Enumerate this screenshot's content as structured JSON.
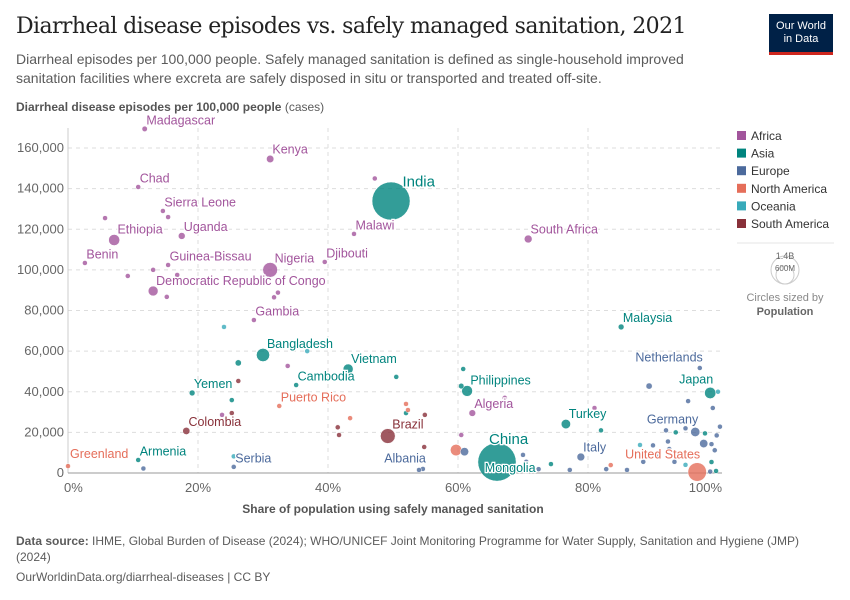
{
  "header": {
    "title": "Diarrheal disease episodes vs. safely managed sanitation, 2021",
    "subtitle": "Diarrheal episodes per 100,000 people. Safely managed sanitation is defined as single-household improved sanitation facilities where excreta are safely disposed in situ or transported and treated off-site.",
    "logo_line1": "Our World",
    "logo_line2": "in Data"
  },
  "footer": {
    "source_label": "Data source:",
    "source_text": "IHME, Global Burden of Disease (2024); WHO/UNICEF Joint Monitoring Programme for Water Supply, Sanitation and Hygiene (JMP) (2024)",
    "url": "OurWorldinData.org/diarrheal-diseases | CC BY"
  },
  "chart_data": {
    "type": "scatter",
    "ylabel": "Diarrheal disease episodes per 100,000 people",
    "ylabel_unit": "(cases)",
    "xlabel": "Share of population using safely managed sanitation",
    "xlim": [
      0,
      100
    ],
    "ylim": [
      0,
      160000
    ],
    "x_ticks": [
      "0%",
      "20%",
      "40%",
      "60%",
      "80%",
      "100%"
    ],
    "x_tick_values": [
      0,
      20,
      40,
      60,
      80,
      100
    ],
    "y_ticks": [
      "0",
      "20,000",
      "40,000",
      "60,000",
      "80,000",
      "100,000",
      "120,000",
      "140,000",
      "160,000"
    ],
    "y_tick_values": [
      0,
      20000,
      40000,
      60000,
      80000,
      100000,
      120000,
      140000,
      160000
    ],
    "grid": true,
    "legend_position": "right",
    "legend": [
      {
        "name": "Africa",
        "color": "#a2559c"
      },
      {
        "name": "Asia",
        "color": "#00847e"
      },
      {
        "name": "Europe",
        "color": "#4c6a9c"
      },
      {
        "name": "North America",
        "color": "#e56e5a"
      },
      {
        "name": "Oceania",
        "color": "#38aaba"
      },
      {
        "name": "South America",
        "color": "#883039"
      }
    ],
    "size_legend": {
      "large": "1.4B",
      "small": "600M",
      "caption": "Circles sized by",
      "variable": "Population"
    },
    "points": [
      {
        "label": "Madagascar",
        "region": "Africa",
        "x": 11.8,
        "y": 169400,
        "pop": 29
      },
      {
        "label": "Kenya",
        "region": "Africa",
        "x": 31.1,
        "y": 154600,
        "pop": 54
      },
      {
        "label": "Chad",
        "region": "Africa",
        "x": 10.8,
        "y": 140800,
        "pop": 18
      },
      {
        "label": "Sierra Leone",
        "region": "Africa",
        "x": 14.6,
        "y": 129000,
        "pop": 8
      },
      {
        "label": "Ethiopia",
        "region": "Africa",
        "x": 7.1,
        "y": 114700,
        "pop": 120
      },
      {
        "label": "Uganda",
        "region": "Africa",
        "x": 17.5,
        "y": 116700,
        "pop": 46
      },
      {
        "label": "Benin",
        "region": "Africa",
        "x": 2.6,
        "y": 103400,
        "pop": 13
      },
      {
        "label": "Guinea-Bissau",
        "region": "Africa",
        "x": 15.4,
        "y": 102400,
        "pop": 2
      },
      {
        "label": "Nigeria",
        "region": "Africa",
        "x": 31.1,
        "y": 100000,
        "pop": 213
      },
      {
        "label": "Democratic Republic of Congo",
        "region": "Africa",
        "x": 13.1,
        "y": 89600,
        "pop": 95
      },
      {
        "label": "Djibouti",
        "region": "Africa",
        "x": 39.5,
        "y": 103900,
        "pop": 1
      },
      {
        "label": "Malawi",
        "region": "Africa",
        "x": 44.0,
        "y": 117700,
        "pop": 20
      },
      {
        "label": "South Africa",
        "region": "Africa",
        "x": 70.8,
        "y": 115200,
        "pop": 60
      },
      {
        "label": "Gambia",
        "region": "Africa",
        "x": 28.6,
        "y": 75300,
        "pop": 2.6
      },
      {
        "label": "Algeria",
        "region": "Africa",
        "x": 62.2,
        "y": 29500,
        "pop": 44
      },
      {
        "label": "India",
        "region": "Asia",
        "x": 49.7,
        "y": 133900,
        "pop": 1410
      },
      {
        "label": "Bangladesh",
        "region": "Asia",
        "x": 30.0,
        "y": 58100,
        "pop": 170
      },
      {
        "label": "Vietnam",
        "region": "Asia",
        "x": 43.1,
        "y": 51200,
        "pop": 98
      },
      {
        "label": "Cambodia",
        "region": "Asia",
        "x": 35.1,
        "y": 43300,
        "pop": 16
      },
      {
        "label": "Yemen",
        "region": "Asia",
        "x": 19.1,
        "y": 39400,
        "pop": 33
      },
      {
        "label": "Philippines",
        "region": "Asia",
        "x": 61.4,
        "y": 40400,
        "pop": 114
      },
      {
        "label": "Malaysia",
        "region": "Asia",
        "x": 85.1,
        "y": 71900,
        "pop": 33
      },
      {
        "label": "Japan",
        "region": "Asia",
        "x": 98.8,
        "y": 39400,
        "pop": 125
      },
      {
        "label": "Turkey",
        "region": "Asia",
        "x": 76.6,
        "y": 24100,
        "pop": 85
      },
      {
        "label": "China",
        "region": "Asia",
        "x": 66.0,
        "y": 5400,
        "pop": 1425
      },
      {
        "label": "Mongolia",
        "region": "Asia",
        "x": 65.2,
        "y": 3000,
        "pop": 3.3
      },
      {
        "label": "Armenia",
        "region": "Asia",
        "x": 10.8,
        "y": 6400,
        "pop": 2.8
      },
      {
        "label": "Netherlands",
        "region": "Europe",
        "x": 97.2,
        "y": 51700,
        "pop": 17.5
      },
      {
        "label": "Germany",
        "region": "Europe",
        "x": 96.5,
        "y": 20200,
        "pop": 83
      },
      {
        "label": "Italy",
        "region": "Europe",
        "x": 78.9,
        "y": 7900,
        "pop": 59
      },
      {
        "label": "Albania",
        "region": "Europe",
        "x": 54.6,
        "y": 2000,
        "pop": 2.8
      },
      {
        "label": "Serbia",
        "region": "Europe",
        "x": 25.5,
        "y": 3000,
        "pop": 7
      },
      {
        "label": "United States",
        "region": "North America",
        "x": 96.8,
        "y": 500,
        "pop": 335
      },
      {
        "label": "Puerto Rico",
        "region": "North America",
        "x": 32.5,
        "y": 33000,
        "pop": 3
      },
      {
        "label": "Greenland",
        "region": "North America",
        "x": 0.0,
        "y": 3400,
        "pop": 0.06
      },
      {
        "label": "Colombia",
        "region": "South America",
        "x": 18.2,
        "y": 20700,
        "pop": 51
      },
      {
        "label": "Brazil",
        "region": "South America",
        "x": 49.2,
        "y": 18200,
        "pop": 214
      },
      {
        "region": "North America",
        "x": 59.7,
        "y": 11300,
        "pop": 127
      },
      {
        "region": "Europe",
        "x": 61.0,
        "y": 10500,
        "pop": 68
      },
      {
        "region": "Africa",
        "x": 47.2,
        "y": 145000,
        "pop": 2
      },
      {
        "region": "Africa",
        "x": 5.7,
        "y": 125500,
        "pop": 2
      },
      {
        "region": "Africa",
        "x": 15.4,
        "y": 126000,
        "pop": 6
      },
      {
        "region": "Africa",
        "x": 9.2,
        "y": 97000,
        "pop": 4
      },
      {
        "region": "Africa",
        "x": 13.1,
        "y": 100000,
        "pop": 2
      },
      {
        "region": "Africa",
        "x": 16.8,
        "y": 97500,
        "pop": 3
      },
      {
        "region": "Africa",
        "x": 15.2,
        "y": 86700,
        "pop": 9
      },
      {
        "region": "Africa",
        "x": 31.7,
        "y": 86500,
        "pop": 3
      },
      {
        "region": "Africa",
        "x": 32.3,
        "y": 88800,
        "pop": 3
      },
      {
        "region": "Africa",
        "x": 33.8,
        "y": 52700,
        "pop": 3
      },
      {
        "region": "Africa",
        "x": 23.7,
        "y": 28600,
        "pop": 2
      },
      {
        "region": "Africa",
        "x": 60.5,
        "y": 18700,
        "pop": 5
      },
      {
        "region": "Africa",
        "x": 67.2,
        "y": 37000,
        "pop": 6
      },
      {
        "region": "Africa",
        "x": 81.0,
        "y": 32000,
        "pop": 2
      },
      {
        "region": "Asia",
        "x": 26.2,
        "y": 54200,
        "pop": 38
      },
      {
        "region": "Asia",
        "x": 25.2,
        "y": 35900,
        "pop": 2
      },
      {
        "region": "Asia",
        "x": 50.5,
        "y": 47300,
        "pop": 7
      },
      {
        "region": "Asia",
        "x": 60.8,
        "y": 51200,
        "pop": 2
      },
      {
        "region": "Asia",
        "x": 60.5,
        "y": 42800,
        "pop": 30
      },
      {
        "region": "Asia",
        "x": 52.0,
        "y": 29500,
        "pop": 5
      },
      {
        "region": "Asia",
        "x": 74.3,
        "y": 4400,
        "pop": 10
      },
      {
        "region": "Asia",
        "x": 82.0,
        "y": 21000,
        "pop": 3
      },
      {
        "region": "Asia",
        "x": 93.5,
        "y": 20000,
        "pop": 3
      },
      {
        "region": "Asia",
        "x": 99.0,
        "y": 5400,
        "pop": 25
      },
      {
        "region": "Asia",
        "x": 99.7,
        "y": 1000,
        "pop": 3
      },
      {
        "region": "Asia",
        "x": 98.0,
        "y": 19500,
        "pop": 3
      },
      {
        "region": "Europe",
        "x": 89.4,
        "y": 42800,
        "pop": 38
      },
      {
        "region": "Europe",
        "x": 98.0,
        "y": 45800,
        "pop": 3
      },
      {
        "region": "Europe",
        "x": 95.4,
        "y": 35400,
        "pop": 3
      },
      {
        "region": "Europe",
        "x": 99.2,
        "y": 32000,
        "pop": 5
      },
      {
        "region": "Europe",
        "x": 100.3,
        "y": 22800,
        "pop": 6
      },
      {
        "region": "Europe",
        "x": 99.8,
        "y": 18500,
        "pop": 8
      },
      {
        "region": "Europe",
        "x": 99.0,
        "y": 14200,
        "pop": 5
      },
      {
        "region": "Europe",
        "x": 99.5,
        "y": 11200,
        "pop": 2
      },
      {
        "region": "Europe",
        "x": 97.8,
        "y": 14500,
        "pop": 67
      },
      {
        "region": "Europe",
        "x": 90.0,
        "y": 13600,
        "pop": 3
      },
      {
        "region": "Europe",
        "x": 92.3,
        "y": 15500,
        "pop": 2
      },
      {
        "region": "Europe",
        "x": 92.5,
        "y": 11800,
        "pop": 3
      },
      {
        "region": "Europe",
        "x": 95.0,
        "y": 22000,
        "pop": 2
      },
      {
        "region": "Europe",
        "x": 92.0,
        "y": 21000,
        "pop": 3
      },
      {
        "region": "Europe",
        "x": 96.0,
        "y": 8000,
        "pop": 2
      },
      {
        "region": "Europe",
        "x": 93.3,
        "y": 5500,
        "pop": 2
      },
      {
        "region": "Europe",
        "x": 90.8,
        "y": 8000,
        "pop": 2
      },
      {
        "region": "Europe",
        "x": 88.5,
        "y": 5500,
        "pop": 2
      },
      {
        "region": "Europe",
        "x": 86.0,
        "y": 1500,
        "pop": 2
      },
      {
        "region": "Europe",
        "x": 98.8,
        "y": 700,
        "pop": 3
      },
      {
        "region": "Europe",
        "x": 82.8,
        "y": 1900,
        "pop": 2
      },
      {
        "region": "Europe",
        "x": 77.2,
        "y": 1500,
        "pop": 2
      },
      {
        "region": "Europe",
        "x": 72.4,
        "y": 1900,
        "pop": 2
      },
      {
        "region": "Europe",
        "x": 70.0,
        "y": 8900,
        "pop": 2
      },
      {
        "region": "Europe",
        "x": 70.5,
        "y": 5500,
        "pop": 4
      },
      {
        "region": "Europe",
        "x": 54.0,
        "y": 1500,
        "pop": 2
      },
      {
        "region": "Europe",
        "x": 11.6,
        "y": 2200,
        "pop": 2
      },
      {
        "region": "Oceania",
        "x": 24.0,
        "y": 71900,
        "pop": 1
      },
      {
        "region": "Oceania",
        "x": 36.8,
        "y": 60000,
        "pop": 1
      },
      {
        "region": "Oceania",
        "x": 88.0,
        "y": 13800,
        "pop": 2
      },
      {
        "region": "Oceania",
        "x": 100.0,
        "y": 40000,
        "pop": 2
      },
      {
        "region": "Oceania",
        "x": 95.0,
        "y": 4000,
        "pop": 5
      },
      {
        "region": "Oceania",
        "x": 25.5,
        "y": 8200,
        "pop": 1
      },
      {
        "region": "South America",
        "x": 26.2,
        "y": 45300,
        "pop": 19
      },
      {
        "region": "South America",
        "x": 25.2,
        "y": 29500,
        "pop": 4
      },
      {
        "region": "South America",
        "x": 54.9,
        "y": 28600,
        "pop": 7
      },
      {
        "region": "South America",
        "x": 41.7,
        "y": 18700,
        "pop": 3
      },
      {
        "region": "South America",
        "x": 41.5,
        "y": 22500,
        "pop": 2
      },
      {
        "region": "South America",
        "x": 54.8,
        "y": 12800,
        "pop": 3
      },
      {
        "region": "North America",
        "x": 43.4,
        "y": 27000,
        "pop": 2
      },
      {
        "region": "North America",
        "x": 52.0,
        "y": 34000,
        "pop": 2
      },
      {
        "region": "North America",
        "x": 83.5,
        "y": 3900,
        "pop": 5
      },
      {
        "region": "North America",
        "x": 52.3,
        "y": 31000,
        "pop": 2
      }
    ]
  }
}
